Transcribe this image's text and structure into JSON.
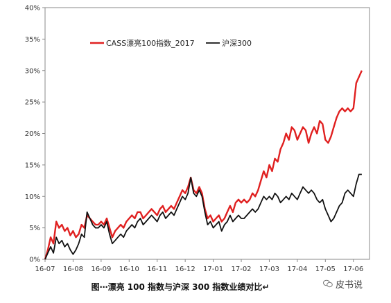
{
  "chart_data": {
    "type": "line",
    "title": "",
    "xlabel": "",
    "ylabel": "",
    "ylim": [
      0,
      40
    ],
    "yticks": [
      "0%",
      "5%",
      "10%",
      "15%",
      "20%",
      "25%",
      "30%",
      "35%",
      "40%"
    ],
    "xlim": [
      0,
      22
    ],
    "xticks": [
      "16-07",
      "16-08",
      "16-09",
      "16-10",
      "16-11",
      "16-12",
      "17-01",
      "17-02",
      "17-03",
      "17-04",
      "17-05",
      "17-06"
    ],
    "legend": "top-left",
    "series": [
      {
        "name": "CASS漂亮100指数_2017",
        "color": "#e02020",
        "points": [
          [
            0.0,
            0.0
          ],
          [
            0.2,
            1.5
          ],
          [
            0.4,
            3.5
          ],
          [
            0.6,
            2.5
          ],
          [
            0.8,
            6.0
          ],
          [
            1.0,
            5.0
          ],
          [
            1.2,
            5.5
          ],
          [
            1.4,
            4.5
          ],
          [
            1.6,
            5.0
          ],
          [
            1.8,
            3.8
          ],
          [
            2.0,
            4.5
          ],
          [
            2.2,
            3.5
          ],
          [
            2.4,
            4.0
          ],
          [
            2.6,
            5.5
          ],
          [
            2.8,
            5.0
          ],
          [
            3.0,
            7.0
          ],
          [
            3.2,
            6.5
          ],
          [
            3.4,
            6.0
          ],
          [
            3.6,
            5.5
          ],
          [
            3.8,
            5.5
          ],
          [
            4.0,
            6.0
          ],
          [
            4.2,
            5.5
          ],
          [
            4.4,
            6.5
          ],
          [
            4.6,
            5.0
          ],
          [
            4.8,
            3.5
          ],
          [
            5.0,
            4.5
          ],
          [
            5.2,
            5.0
          ],
          [
            5.4,
            5.5
          ],
          [
            5.6,
            5.0
          ],
          [
            5.8,
            6.0
          ],
          [
            6.0,
            6.5
          ],
          [
            6.2,
            7.0
          ],
          [
            6.4,
            6.5
          ],
          [
            6.6,
            7.5
          ],
          [
            6.8,
            7.5
          ],
          [
            7.0,
            6.5
          ],
          [
            7.2,
            7.0
          ],
          [
            7.4,
            7.5
          ],
          [
            7.6,
            8.0
          ],
          [
            7.8,
            7.5
          ],
          [
            8.0,
            7.0
          ],
          [
            8.2,
            8.0
          ],
          [
            8.4,
            8.5
          ],
          [
            8.6,
            7.5
          ],
          [
            8.8,
            8.0
          ],
          [
            9.0,
            8.5
          ],
          [
            9.2,
            8.0
          ],
          [
            9.4,
            9.0
          ],
          [
            9.6,
            10.0
          ],
          [
            9.8,
            11.0
          ],
          [
            10.0,
            10.5
          ],
          [
            10.2,
            11.5
          ],
          [
            10.4,
            13.0
          ],
          [
            10.6,
            11.0
          ],
          [
            10.8,
            10.5
          ],
          [
            11.0,
            11.5
          ],
          [
            11.2,
            10.5
          ],
          [
            11.4,
            8.0
          ],
          [
            11.6,
            6.5
          ],
          [
            11.8,
            7.0
          ],
          [
            12.0,
            6.0
          ],
          [
            12.2,
            6.5
          ],
          [
            12.4,
            7.0
          ],
          [
            12.6,
            6.0
          ],
          [
            12.8,
            6.5
          ],
          [
            13.0,
            7.5
          ],
          [
            13.2,
            8.5
          ],
          [
            13.4,
            7.5
          ],
          [
            13.6,
            9.0
          ],
          [
            13.8,
            9.5
          ],
          [
            14.0,
            9.0
          ],
          [
            14.2,
            9.5
          ],
          [
            14.4,
            9.0
          ],
          [
            14.6,
            9.5
          ],
          [
            14.8,
            10.5
          ],
          [
            15.0,
            10.0
          ],
          [
            15.2,
            11.0
          ],
          [
            15.4,
            12.5
          ],
          [
            15.6,
            14.0
          ],
          [
            15.8,
            13.0
          ],
          [
            16.0,
            15.0
          ],
          [
            16.2,
            14.0
          ],
          [
            16.4,
            16.0
          ],
          [
            16.6,
            15.5
          ],
          [
            16.8,
            17.5
          ],
          [
            17.0,
            18.5
          ],
          [
            17.2,
            20.0
          ],
          [
            17.4,
            19.0
          ],
          [
            17.6,
            21.0
          ],
          [
            17.8,
            20.5
          ],
          [
            18.0,
            19.0
          ],
          [
            18.2,
            20.0
          ],
          [
            18.4,
            21.0
          ],
          [
            18.6,
            20.5
          ],
          [
            18.8,
            18.5
          ],
          [
            19.0,
            20.0
          ],
          [
            19.2,
            21.0
          ],
          [
            19.4,
            20.0
          ],
          [
            19.6,
            22.0
          ],
          [
            19.8,
            21.5
          ],
          [
            20.0,
            19.0
          ],
          [
            20.2,
            18.5
          ],
          [
            20.4,
            19.5
          ],
          [
            20.6,
            21.0
          ],
          [
            20.8,
            22.5
          ],
          [
            21.0,
            23.5
          ],
          [
            21.2,
            24.0
          ],
          [
            21.4,
            23.5
          ],
          [
            21.6,
            24.0
          ],
          [
            21.8,
            23.5
          ],
          [
            22.0,
            24.0
          ],
          [
            22.2,
            28.0
          ],
          [
            22.4,
            29.0
          ],
          [
            22.6,
            30.0
          ]
        ]
      },
      {
        "name": "沪深300",
        "color": "#111111",
        "points": [
          [
            0.0,
            0.0
          ],
          [
            0.2,
            1.0
          ],
          [
            0.4,
            2.0
          ],
          [
            0.6,
            1.0
          ],
          [
            0.8,
            3.5
          ],
          [
            1.0,
            2.5
          ],
          [
            1.2,
            3.0
          ],
          [
            1.4,
            2.0
          ],
          [
            1.6,
            2.5
          ],
          [
            1.8,
            1.5
          ],
          [
            2.0,
            0.8
          ],
          [
            2.2,
            1.5
          ],
          [
            2.4,
            2.5
          ],
          [
            2.6,
            4.0
          ],
          [
            2.8,
            3.5
          ],
          [
            3.0,
            7.5
          ],
          [
            3.2,
            6.5
          ],
          [
            3.4,
            5.5
          ],
          [
            3.6,
            5.0
          ],
          [
            3.8,
            5.0
          ],
          [
            4.0,
            5.5
          ],
          [
            4.2,
            5.0
          ],
          [
            4.4,
            6.0
          ],
          [
            4.6,
            4.0
          ],
          [
            4.8,
            2.5
          ],
          [
            5.0,
            3.0
          ],
          [
            5.2,
            3.5
          ],
          [
            5.4,
            4.0
          ],
          [
            5.6,
            3.5
          ],
          [
            5.8,
            4.5
          ],
          [
            6.0,
            5.0
          ],
          [
            6.2,
            5.5
          ],
          [
            6.4,
            5.0
          ],
          [
            6.6,
            6.0
          ],
          [
            6.8,
            6.5
          ],
          [
            7.0,
            5.5
          ],
          [
            7.2,
            6.0
          ],
          [
            7.4,
            6.5
          ],
          [
            7.6,
            7.0
          ],
          [
            7.8,
            6.5
          ],
          [
            8.0,
            6.0
          ],
          [
            8.2,
            7.0
          ],
          [
            8.4,
            7.5
          ],
          [
            8.6,
            6.5
          ],
          [
            8.8,
            7.0
          ],
          [
            9.0,
            7.5
          ],
          [
            9.2,
            7.0
          ],
          [
            9.4,
            8.0
          ],
          [
            9.6,
            9.0
          ],
          [
            9.8,
            10.0
          ],
          [
            10.0,
            9.5
          ],
          [
            10.2,
            10.5
          ],
          [
            10.4,
            13.0
          ],
          [
            10.6,
            10.5
          ],
          [
            10.8,
            10.0
          ],
          [
            11.0,
            11.0
          ],
          [
            11.2,
            10.0
          ],
          [
            11.4,
            7.5
          ],
          [
            11.6,
            5.5
          ],
          [
            11.8,
            6.0
          ],
          [
            12.0,
            5.0
          ],
          [
            12.2,
            5.5
          ],
          [
            12.4,
            6.0
          ],
          [
            12.6,
            4.5
          ],
          [
            12.8,
            5.5
          ],
          [
            13.0,
            6.0
          ],
          [
            13.2,
            7.0
          ],
          [
            13.4,
            6.0
          ],
          [
            13.6,
            6.5
          ],
          [
            13.8,
            7.0
          ],
          [
            14.0,
            6.5
          ],
          [
            14.2,
            6.5
          ],
          [
            14.4,
            7.0
          ],
          [
            14.6,
            7.5
          ],
          [
            14.8,
            8.0
          ],
          [
            15.0,
            7.5
          ],
          [
            15.2,
            8.0
          ],
          [
            15.4,
            9.0
          ],
          [
            15.6,
            10.0
          ],
          [
            15.8,
            9.5
          ],
          [
            16.0,
            10.0
          ],
          [
            16.2,
            9.5
          ],
          [
            16.4,
            10.5
          ],
          [
            16.6,
            10.0
          ],
          [
            16.8,
            9.0
          ],
          [
            17.0,
            9.5
          ],
          [
            17.2,
            10.0
          ],
          [
            17.4,
            9.5
          ],
          [
            17.6,
            10.5
          ],
          [
            17.8,
            10.0
          ],
          [
            18.0,
            9.5
          ],
          [
            18.2,
            10.5
          ],
          [
            18.4,
            11.5
          ],
          [
            18.6,
            11.0
          ],
          [
            18.8,
            10.5
          ],
          [
            19.0,
            11.0
          ],
          [
            19.2,
            10.5
          ],
          [
            19.4,
            9.5
          ],
          [
            19.6,
            9.0
          ],
          [
            19.8,
            9.5
          ],
          [
            20.0,
            8.0
          ],
          [
            20.2,
            7.0
          ],
          [
            20.4,
            6.0
          ],
          [
            20.6,
            6.5
          ],
          [
            20.8,
            7.5
          ],
          [
            21.0,
            8.5
          ],
          [
            21.2,
            9.0
          ],
          [
            21.4,
            10.5
          ],
          [
            21.6,
            11.0
          ],
          [
            21.8,
            10.5
          ],
          [
            22.0,
            10.0
          ],
          [
            22.2,
            12.0
          ],
          [
            22.4,
            13.5
          ],
          [
            22.6,
            13.5
          ]
        ]
      }
    ]
  },
  "caption": "图⋯漂亮 100 指数与沪深 300 指数业绩对比↵",
  "watermark": {
    "icon": "wechat-icon",
    "text": "皮书说"
  }
}
